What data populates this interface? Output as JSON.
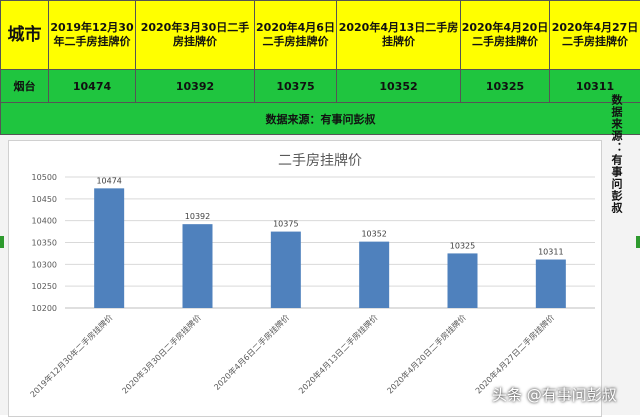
{
  "table": {
    "city_header": "城市",
    "date_headers": [
      "2019年12月30年二手房挂牌价",
      "2020年3月30日二手房挂牌价",
      "2020年4月6日二手房挂牌价",
      "2020年4月13日二手房挂牌价",
      "2020年4月20日二手房挂牌价",
      "2020年4月27日二手房挂牌价"
    ],
    "city": "烟台",
    "values": [
      "10474",
      "10392",
      "10375",
      "10352",
      "10325",
      "10311"
    ],
    "source": "数据来源：有事问彭叔"
  },
  "side_note": "数据来源：有事问彭叔",
  "watermark": "头条 @有事问彭叔",
  "colors": {
    "header_bg": "#ffff00",
    "row_bg": "#1fc53f",
    "bar": "#4f81bd"
  },
  "chart_data": {
    "type": "bar",
    "title": "二手房挂牌价",
    "categories": [
      "2019年12月30年二手房挂牌价",
      "2020年3月30日二手房挂牌价",
      "2020年4月6日二手房挂牌价",
      "2020年4月13日二手房挂牌价",
      "2020年4月20日二手房挂牌价",
      "2020年4月27日二手房挂牌价"
    ],
    "values": [
      10474,
      10392,
      10375,
      10352,
      10325,
      10311
    ],
    "ylim": [
      10200,
      10500
    ],
    "yticks": [
      10200,
      10250,
      10300,
      10350,
      10400,
      10450,
      10500
    ],
    "grid": true,
    "legend": "none"
  }
}
